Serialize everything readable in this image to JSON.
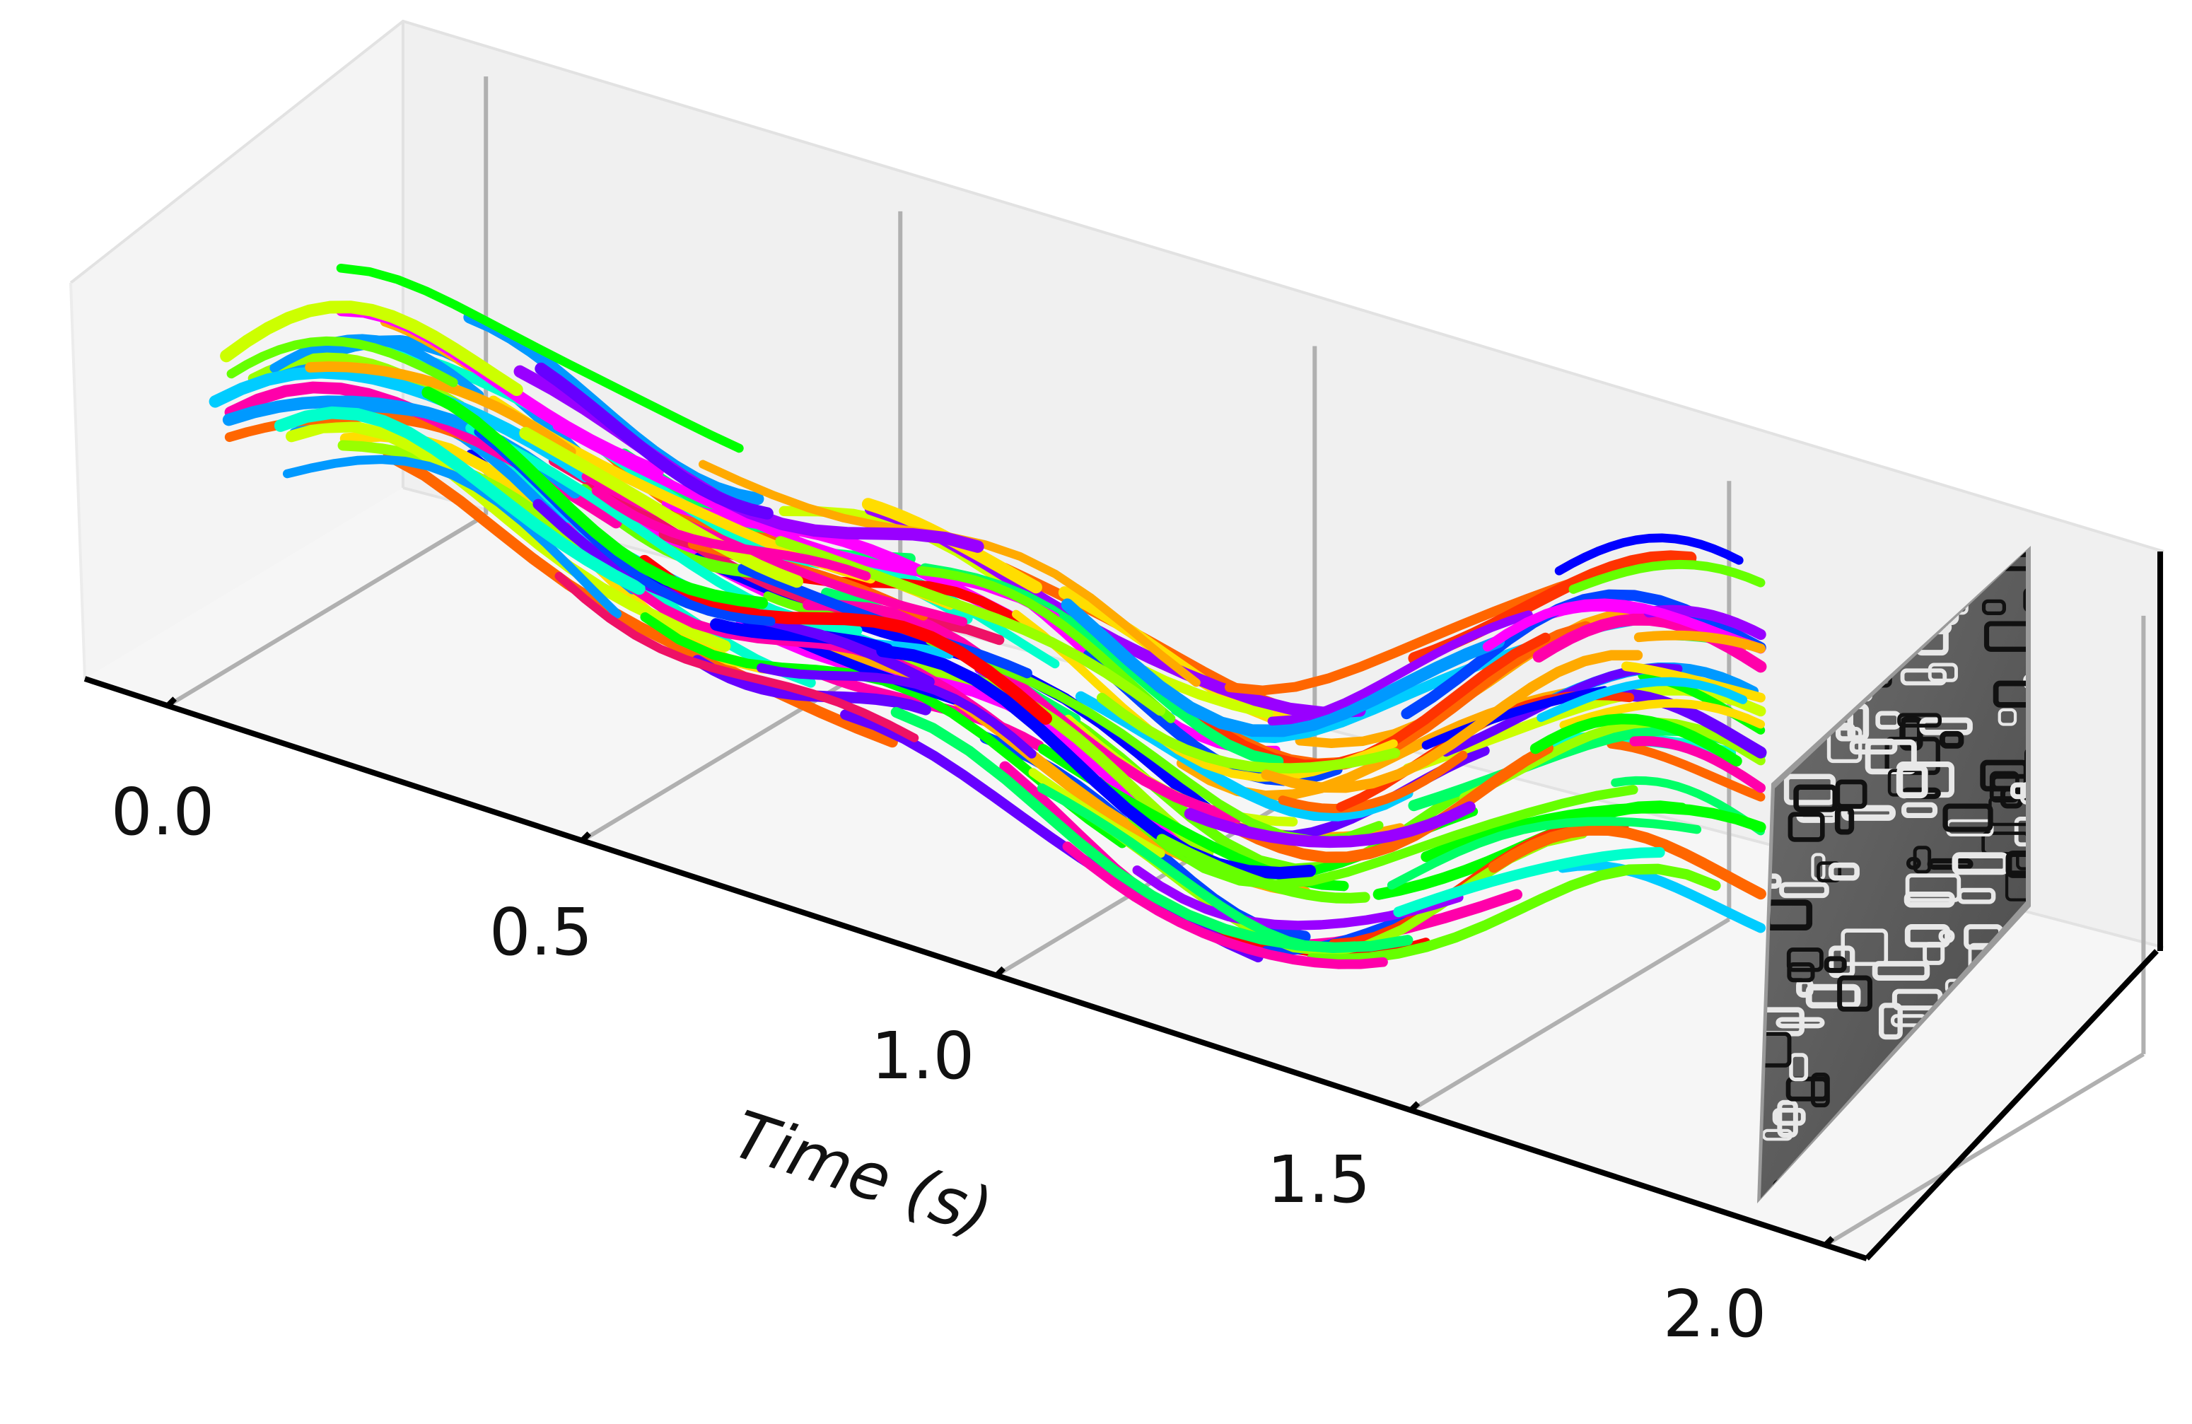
{
  "chart_data": {
    "type": "line",
    "title": "",
    "xlabel": "Time (s)",
    "xlim": [
      -0.1,
      2.05
    ],
    "xticks": [
      0.0,
      0.5,
      1.0,
      1.5,
      2.0
    ],
    "xtick_labels": [
      "0.0",
      "0.5",
      "1.0",
      "1.5",
      "2.0"
    ],
    "ylabel": "",
    "zlabel": "",
    "grid": true,
    "view": "3d",
    "end_panel": "grayscale-event-frame",
    "track_colors": [
      "#ff0000",
      "#ff00aa",
      "#ff00ff",
      "#ee1166",
      "#9900ff",
      "#6600ff",
      "#0000ff",
      "#0044ff",
      "#0099ff",
      "#00ccff",
      "#00ffcc",
      "#00ff66",
      "#00ff00",
      "#66ff00",
      "#99ff00",
      "#ccff00",
      "#ffdd00",
      "#ffaa00",
      "#ff6600",
      "#ff3300"
    ]
  }
}
